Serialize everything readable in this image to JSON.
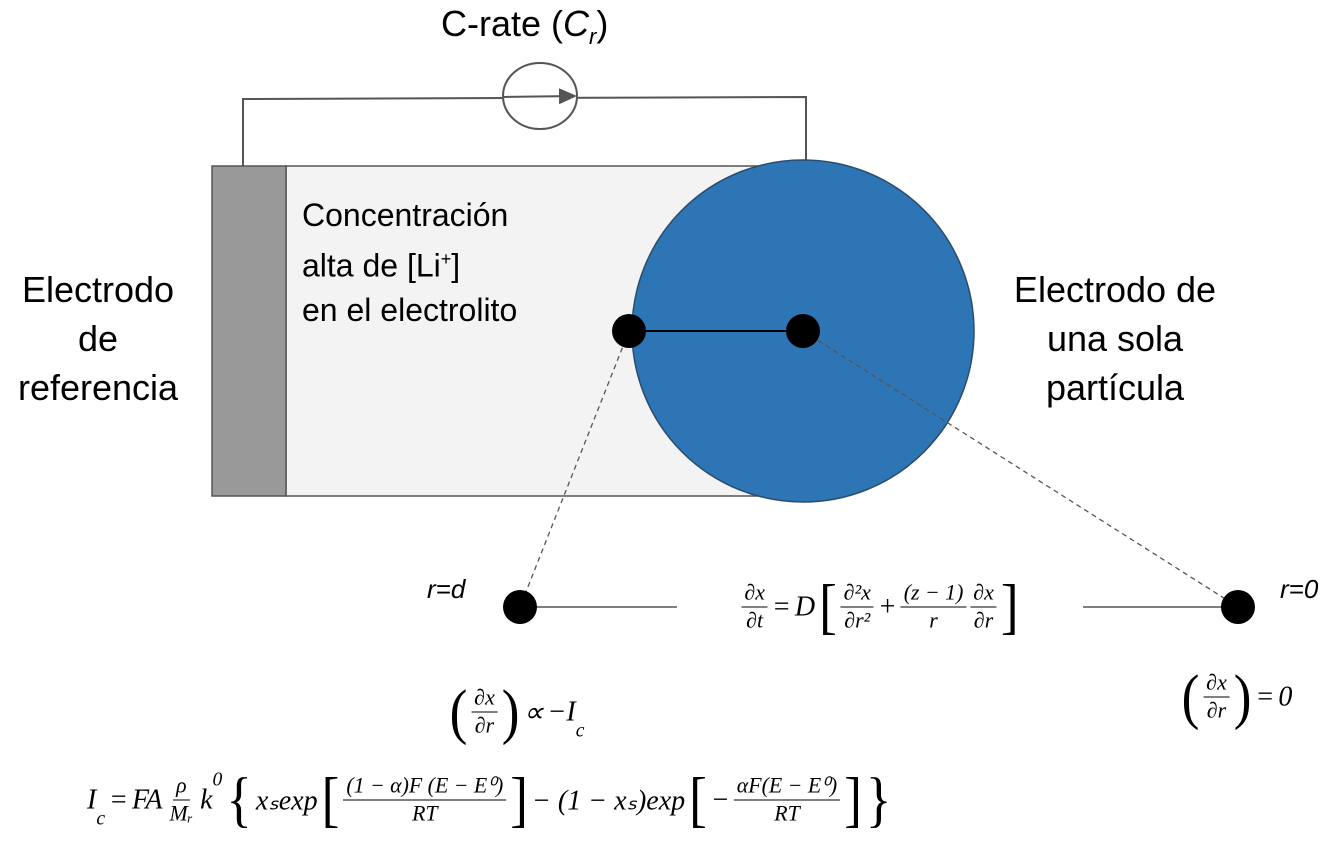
{
  "crate": {
    "text": "C-rate (",
    "var": "C",
    "sub": "r",
    "close": ")"
  },
  "reference_electrode": [
    "Electrodo",
    "de",
    "referencia"
  ],
  "electrolyte": {
    "line1": "Concentración",
    "line2": {
      "text": "alta de [Li",
      "sup": "+",
      "close": "]"
    },
    "line3": "en el electrolito"
  },
  "particle_electrode": [
    "Electrodo de",
    "una sola",
    "partícula"
  ],
  "r_d": "r=d",
  "r_0": "r=0",
  "equations": [
    {
      "tokens": [
        {
          "frac": [
            "∂x",
            "∂t"
          ]
        },
        "=",
        "D",
        {
          "big": "["
        },
        {
          "frac": [
            "∂²x",
            "∂r²"
          ]
        },
        "+",
        {
          "frac": [
            "(z − 1)",
            "r"
          ]
        },
        {
          "frac": [
            "∂x",
            "∂r"
          ]
        },
        {
          "big": "]"
        }
      ]
    },
    {
      "tokens": [
        {
          "big": "("
        },
        {
          "frac": [
            "∂x",
            "∂r"
          ]
        },
        {
          "big": ")"
        },
        "∝",
        "−I",
        {
          "sub": "c"
        }
      ]
    },
    {
      "tokens": [
        {
          "big": "("
        },
        {
          "frac": [
            "∂x",
            "∂r"
          ]
        },
        {
          "big": ")"
        },
        "=",
        "0"
      ]
    },
    {
      "tokens": [
        "I",
        {
          "sub": "c"
        },
        "=",
        "FA",
        {
          "frac": [
            "ρ",
            "Mᵣ"
          ]
        },
        "k",
        {
          "sup": "0"
        },
        {
          "big": "{"
        },
        "xₛexp",
        {
          "big": "["
        },
        {
          "frac": [
            "(1 − α)F (E − E⁰)",
            "RT"
          ]
        },
        {
          "big": "]"
        },
        "− (1 − xₛ)exp",
        {
          "big": "["
        },
        "−",
        {
          "frac": [
            "αF(E − E⁰)",
            "RT"
          ]
        },
        {
          "big": "]"
        },
        {
          "big": "}"
        }
      ]
    }
  ]
}
